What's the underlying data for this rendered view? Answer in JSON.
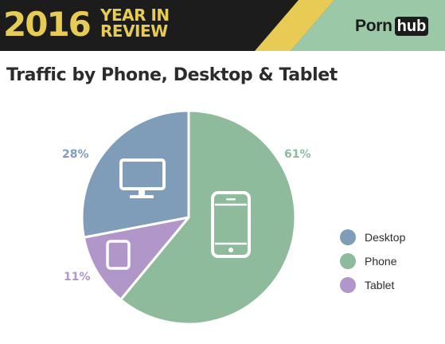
{
  "header": {
    "year": "2016",
    "subtitle_line1": "YEAR IN",
    "subtitle_line2": "REVIEW",
    "logo_part1": "Porn",
    "logo_part2": "hub"
  },
  "colors": {
    "desktop": "#7f9db8",
    "phone": "#8fbb9d",
    "tablet": "#b096c9",
    "banner_bg": "#1c1c1c",
    "banner_yellow": "#e7cb54",
    "banner_green": "#9bc8a6",
    "banner_blue": "#7f9db8"
  },
  "chart_data": {
    "type": "pie",
    "title": "Traffic by Phone, Desktop & Tablet",
    "slices": [
      {
        "name": "Phone",
        "value": 61,
        "label": "61%",
        "color": "#8fbb9d",
        "icon": "phone-icon"
      },
      {
        "name": "Tablet",
        "value": 11,
        "label": "11%",
        "color": "#b096c9",
        "icon": "tablet-icon"
      },
      {
        "name": "Desktop",
        "value": 28,
        "label": "28%",
        "color": "#7f9db8",
        "icon": "desktop-monitor-icon"
      }
    ],
    "legend": [
      {
        "label": "Desktop",
        "color": "#7f9db8"
      },
      {
        "label": "Phone",
        "color": "#8fbb9d"
      },
      {
        "label": "Tablet",
        "color": "#b096c9"
      }
    ],
    "legend_position": "right",
    "start_angle": "top",
    "direction": "clockwise"
  }
}
